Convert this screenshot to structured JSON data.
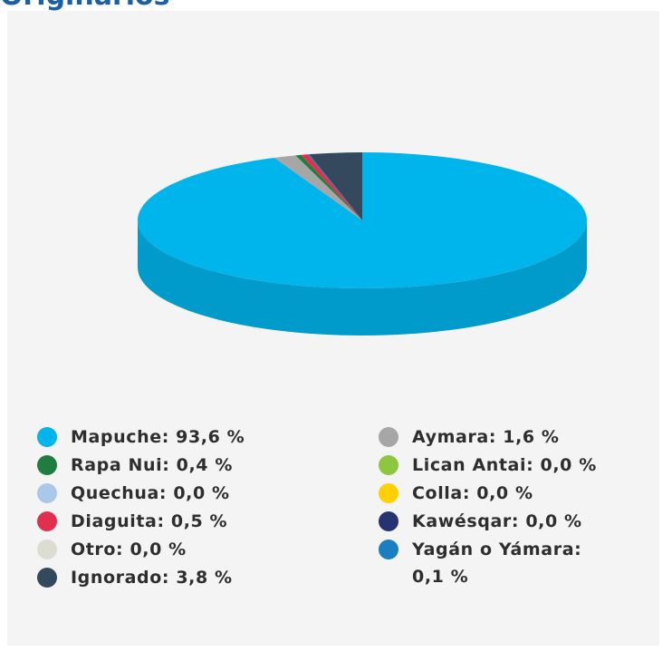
{
  "chart_data": {
    "type": "pie3d",
    "title": "Originarios",
    "categories": [
      "Mapuche:",
      "Aymara:",
      "Rapa Nui:",
      "Lican Antai:",
      "Quechua:",
      "Colla:",
      "Diaguita:",
      "Kawésqar:",
      "Otro:",
      "Yagán o Yámara:",
      "Ignorado:"
    ],
    "values": [
      93.6,
      1.6,
      0.4,
      0.0,
      0.0,
      0.0,
      0.5,
      0.0,
      0.0,
      0.1,
      3.8
    ],
    "value_labels": [
      "93,6 %",
      "1,6 %",
      "0,4 %",
      "0,0 %",
      "0,0 %",
      "0,0 %",
      "0,5 %",
      "0,0 %",
      "0,0 %",
      "0,1 %",
      "3,8 %"
    ],
    "colors": [
      "#00b4ec",
      "#a6a6a6",
      "#1f7d3f",
      "#8dc63f",
      "#a9c8ea",
      "#ffd100",
      "#e0304e",
      "#253470",
      "#dcdcd2",
      "#1a7fc1",
      "#34495e"
    ]
  }
}
